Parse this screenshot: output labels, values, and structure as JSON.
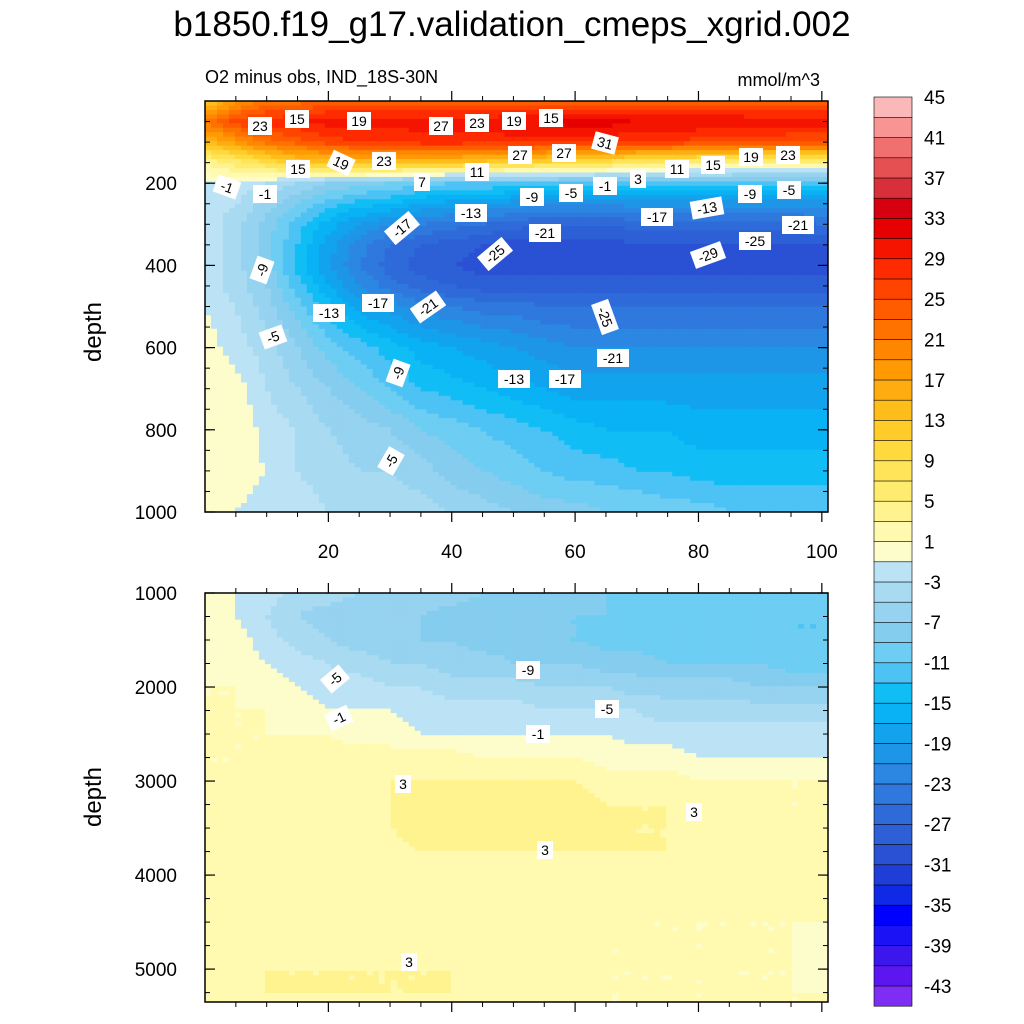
{
  "chart_data": {
    "type": "heatmap",
    "title": "b1850.f19_g17.validation_cmeps_xgrid.002",
    "subtitle_left": "O2 minus obs, IND_18S-30N",
    "subtitle_right": "mmol/m^3",
    "colorbar": {
      "levels": [
        -45,
        -43,
        -41,
        -39,
        -37,
        -35,
        -33,
        -31,
        -29,
        -27,
        -25,
        -23,
        -21,
        -19,
        -17,
        -15,
        -13,
        -11,
        -9,
        -7,
        -5,
        -3,
        -1,
        1,
        3,
        5,
        7,
        9,
        11,
        13,
        15,
        17,
        19,
        21,
        23,
        25,
        27,
        29,
        31,
        33,
        35,
        37,
        39,
        41,
        43,
        45
      ],
      "tick_labels": [
        "45",
        "41",
        "37",
        "33",
        "29",
        "25",
        "21",
        "17",
        "13",
        "9",
        "5",
        "1",
        "-3",
        "-7",
        "-11",
        "-15",
        "-19",
        "-23",
        "-27",
        "-31",
        "-35",
        "-39",
        "-43"
      ]
    },
    "panels": [
      {
        "name": "upper",
        "xlim": [
          0,
          100
        ],
        "ylim": [
          1000,
          0
        ],
        "ylabel": "depth",
        "xticks": [
          20,
          40,
          60,
          80,
          100
        ],
        "xtick_labels": [
          "20",
          "40",
          "60",
          "80",
          "100"
        ],
        "yticks": [
          200,
          400,
          600,
          800,
          1000
        ],
        "ytick_labels": [
          "200",
          "400",
          "600",
          "800",
          "1000"
        ],
        "x": [
          0,
          5,
          10,
          15,
          20,
          25,
          30,
          35,
          40,
          45,
          50,
          55,
          60,
          65,
          70,
          75,
          80,
          85,
          90,
          95,
          100
        ],
        "depth": [
          0,
          50,
          100,
          150,
          200,
          250,
          300,
          350,
          400,
          450,
          500,
          600,
          700,
          800,
          900,
          1000
        ],
        "values": [
          [
            12,
            18,
            22,
            22,
            24,
            24,
            24,
            24,
            24,
            24,
            24,
            24,
            24,
            24,
            24,
            24,
            24,
            24,
            24,
            24,
            24
          ],
          [
            22,
            26,
            28,
            29,
            30,
            30,
            30,
            30,
            30,
            30,
            31,
            31,
            32,
            32,
            31,
            31,
            31,
            31,
            30,
            30,
            30
          ],
          [
            14,
            18,
            22,
            24,
            26,
            27,
            27,
            28,
            28,
            28,
            28,
            28,
            28,
            28,
            27,
            27,
            26,
            26,
            26,
            25,
            25
          ],
          [
            3,
            6,
            9,
            12,
            13,
            14,
            14,
            13,
            13,
            12,
            11,
            10,
            9,
            8,
            7,
            6,
            5,
            5,
            4,
            4,
            4
          ],
          [
            -1,
            -1,
            -3,
            -5,
            -7,
            -8,
            -9,
            -10,
            -11,
            -11,
            -11,
            -11,
            -11,
            -11,
            -11,
            -12,
            -12,
            -12,
            -12,
            -12,
            -12
          ],
          [
            -2,
            -3,
            -6,
            -9,
            -12,
            -14,
            -15,
            -17,
            -18,
            -19,
            -20,
            -21,
            -21,
            -21,
            -20,
            -20,
            -20,
            -20,
            -20,
            -20,
            -20
          ],
          [
            -2,
            -4,
            -8,
            -12,
            -16,
            -19,
            -21,
            -23,
            -24,
            -25,
            -26,
            -27,
            -27,
            -27,
            -26,
            -26,
            -26,
            -26,
            -26,
            -26,
            -25
          ],
          [
            -2,
            -4,
            -8,
            -13,
            -18,
            -22,
            -25,
            -27,
            -28,
            -29,
            -30,
            -30,
            -30,
            -30,
            -29,
            -29,
            -29,
            -29,
            -29,
            -29,
            -29
          ],
          [
            -2,
            -4,
            -8,
            -14,
            -19,
            -23,
            -26,
            -28,
            -29,
            -30,
            -30,
            -30,
            -30,
            -30,
            -30,
            -30,
            -30,
            -30,
            -30,
            -30,
            -30
          ],
          [
            -2,
            -4,
            -7,
            -12,
            -17,
            -21,
            -24,
            -26,
            -27,
            -28,
            -28,
            -28,
            -28,
            -28,
            -28,
            -28,
            -28,
            -28,
            -28,
            -28,
            -28
          ],
          [
            -1,
            -3,
            -6,
            -10,
            -14,
            -18,
            -20,
            -22,
            -23,
            -24,
            -24,
            -25,
            -25,
            -25,
            -25,
            -25,
            -25,
            -25,
            -25,
            -25,
            -25
          ],
          [
            0,
            -2,
            -4,
            -7,
            -10,
            -12,
            -14,
            -16,
            -17,
            -18,
            -19,
            -20,
            -21,
            -21,
            -21,
            -21,
            -21,
            -21,
            -21,
            -21,
            -21
          ],
          [
            1,
            0,
            -3,
            -5,
            -7,
            -9,
            -11,
            -13,
            -14,
            -15,
            -16,
            -17,
            -18,
            -18,
            -18,
            -18,
            -18,
            -18,
            -18,
            -18,
            -18
          ],
          [
            1,
            1,
            -2,
            -3,
            -5,
            -6,
            -7,
            -9,
            -10,
            -11,
            -12,
            -13,
            -14,
            -15,
            -15,
            -15,
            -16,
            -16,
            -16,
            -16,
            -16
          ],
          [
            1,
            0,
            -1,
            -3,
            -4,
            -5,
            -5,
            -6,
            -8,
            -9,
            -10,
            -11,
            -12,
            -12,
            -13,
            -13,
            -14,
            -14,
            -14,
            -14,
            -14
          ],
          [
            1,
            -1,
            -2,
            -2,
            -3,
            -4,
            -4,
            -4,
            -5,
            -6,
            -7,
            -8,
            -8,
            -9,
            -9,
            -10,
            -10,
            -11,
            -11,
            -11,
            -11
          ]
        ],
        "contour_labels": [
          "23",
          "15",
          "19",
          "27",
          "23",
          "19",
          "15",
          "27",
          "27",
          "31",
          "15",
          "19",
          "23",
          "7",
          "11",
          "3",
          "11",
          "15",
          "19",
          "23",
          "-1",
          "-1",
          "-13",
          "-9",
          "-5",
          "-1",
          "-9",
          "-5",
          "-17",
          "-21",
          "-17",
          "-13",
          "-21",
          "-25",
          "-29",
          "-25",
          "-9",
          "-13",
          "-17",
          "-21",
          "-25",
          "-5",
          "-21",
          "-9",
          "-13",
          "-17",
          "-5"
        ]
      },
      {
        "name": "lower",
        "xlim": [
          0,
          100
        ],
        "ylim": [
          5350,
          1000
        ],
        "ylabel": "depth",
        "yticks": [
          1000,
          2000,
          3000,
          4000,
          5000
        ],
        "ytick_labels": [
          "1000",
          "2000",
          "3000",
          "4000",
          "5000"
        ],
        "x": [
          0,
          5,
          10,
          15,
          20,
          25,
          30,
          35,
          40,
          45,
          50,
          55,
          60,
          65,
          70,
          75,
          80,
          85,
          90,
          95,
          100
        ],
        "depth": [
          1000,
          1250,
          1500,
          1750,
          2000,
          2250,
          2500,
          2750,
          3000,
          3250,
          3500,
          3750,
          4000,
          4250,
          4500,
          4750,
          5000,
          5250,
          5350
        ],
        "values": [
          [
            1,
            -1,
            -2,
            -4,
            -4,
            -5,
            -5,
            -6,
            -6,
            -7,
            -7,
            -8,
            -8,
            -9,
            -9,
            -10,
            -10,
            -10,
            -10,
            -10,
            -11
          ],
          [
            1,
            -1,
            -3,
            -5,
            -6,
            -7,
            -7,
            -7,
            -8,
            -8,
            -8,
            -9,
            -9,
            -9,
            -10,
            -10,
            -10,
            -10,
            -10,
            -11,
            -11
          ],
          [
            1,
            0,
            -2,
            -4,
            -5,
            -6,
            -6,
            -7,
            -7,
            -8,
            -8,
            -9,
            -9,
            -10,
            -10,
            -10,
            -10,
            -11,
            -11,
            -11,
            -11
          ],
          [
            1,
            0,
            -1,
            -2,
            -3,
            -4,
            -5,
            -5,
            -6,
            -6,
            -7,
            -7,
            -7,
            -8,
            -8,
            -9,
            -9,
            -9,
            -9,
            -10,
            -10
          ],
          [
            1,
            1,
            0,
            -1,
            -2,
            -2,
            -3,
            -3,
            -4,
            -4,
            -4,
            -5,
            -5,
            -5,
            -6,
            -6,
            -6,
            -6,
            -7,
            -7,
            -7
          ],
          [
            1,
            1,
            1,
            0,
            -1,
            -1,
            -1,
            -2,
            -2,
            -2,
            -2,
            -3,
            -3,
            -3,
            -3,
            -4,
            -4,
            -4,
            -4,
            -4,
            -4
          ],
          [
            1,
            1,
            1,
            1,
            1,
            0,
            0,
            -1,
            -1,
            -1,
            -1,
            -1,
            -1,
            -1,
            -2,
            -2,
            -2,
            -2,
            -2,
            -2,
            -2
          ],
          [
            1,
            1,
            1,
            2,
            2,
            2,
            2,
            2,
            2,
            1,
            1,
            1,
            1,
            0,
            0,
            0,
            -1,
            -1,
            -1,
            -1,
            -1
          ],
          [
            1,
            1,
            2,
            2,
            2,
            2,
            3,
            3,
            3,
            3,
            3,
            3,
            3,
            2,
            2,
            2,
            1,
            1,
            1,
            1,
            1
          ],
          [
            1,
            2,
            2,
            2,
            2,
            3,
            3,
            4,
            4,
            4,
            4,
            4,
            4,
            3,
            3,
            3,
            2,
            2,
            2,
            1,
            1
          ],
          [
            1,
            2,
            2,
            2,
            2,
            2,
            3,
            4,
            4,
            4,
            4,
            4,
            4,
            4,
            3,
            3,
            3,
            2,
            2,
            2,
            2
          ],
          [
            1,
            2,
            2,
            2,
            2,
            2,
            2,
            3,
            3,
            3,
            3,
            3,
            3,
            3,
            3,
            3,
            2,
            2,
            2,
            2,
            2
          ],
          [
            1,
            2,
            2,
            2,
            2,
            2,
            2,
            2,
            2,
            2,
            2,
            2,
            2,
            2,
            2,
            2,
            2,
            2,
            2,
            2,
            2
          ],
          [
            1,
            2,
            2,
            2,
            2,
            2,
            2,
            2,
            2,
            2,
            2,
            2,
            2,
            2,
            2,
            2,
            2,
            2,
            2,
            2,
            2
          ],
          [
            1,
            2,
            2,
            2,
            2,
            2,
            2,
            2,
            2,
            2,
            2,
            2,
            2,
            2,
            1,
            1,
            1,
            1,
            1,
            1,
            1
          ],
          [
            1,
            2,
            2,
            2,
            2,
            2,
            2,
            2,
            2,
            2,
            2,
            2,
            2,
            1,
            1,
            1,
            1,
            1,
            1,
            1,
            0
          ],
          [
            1,
            2,
            3,
            3,
            3,
            3,
            3,
            3,
            3,
            2,
            2,
            2,
            2,
            1,
            1,
            1,
            1,
            1,
            1,
            1,
            0
          ],
          [
            1,
            2,
            3,
            3,
            3,
            3,
            3,
            3,
            3,
            2,
            2,
            2,
            2,
            1,
            1,
            1,
            1,
            1,
            1,
            1,
            1
          ],
          [
            1,
            2,
            2,
            2,
            2,
            2,
            2,
            2,
            2,
            2,
            2,
            2,
            1,
            1,
            1,
            1,
            1,
            1,
            1,
            1,
            1
          ]
        ],
        "contour_labels": [
          "-5",
          "-9",
          "-1",
          "-5",
          "-1",
          "3",
          "3",
          "3",
          "3"
        ]
      }
    ]
  }
}
